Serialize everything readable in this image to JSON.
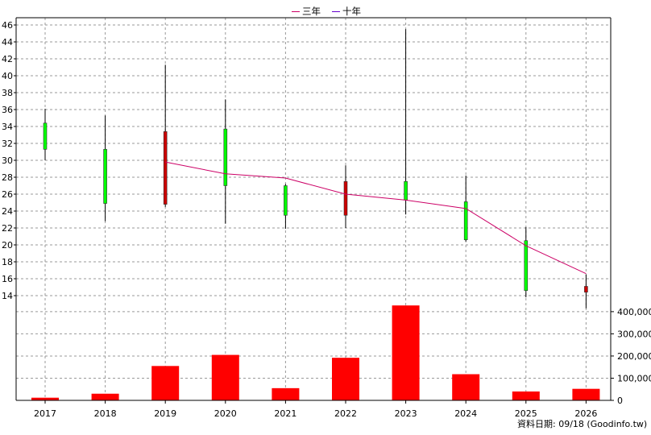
{
  "legend": [
    {
      "label": "三年",
      "color": "#cc0066"
    },
    {
      "label": "十年",
      "color": "#6600cc"
    }
  ],
  "source_text": "資料日期: 09/18 (Goodinfo.tw)",
  "colors": {
    "up": "#00ff00",
    "down": "#cc0000",
    "volume": "#ff0000",
    "ma3": "#cc0066",
    "grid": "#999999",
    "wick": "#000000"
  },
  "chart_data": [
    {
      "type": "candlestick",
      "categories": [
        "2017",
        "2018",
        "2019",
        "2020",
        "2021",
        "2022",
        "2023",
        "2024",
        "2025",
        "2026"
      ],
      "ohlc": [
        {
          "open": 31.3,
          "high": 36.1,
          "low": 30.0,
          "close": 34.4
        },
        {
          "open": 24.9,
          "high": 35.3,
          "low": 22.8,
          "close": 31.3
        },
        {
          "open": 33.4,
          "high": 41.3,
          "low": 24.5,
          "close": 24.8
        },
        {
          "open": 27.0,
          "high": 37.2,
          "low": 22.5,
          "close": 33.7
        },
        {
          "open": 23.5,
          "high": 27.2,
          "low": 21.9,
          "close": 27.0
        },
        {
          "open": 27.5,
          "high": 29.4,
          "low": 22.0,
          "close": 23.5
        },
        {
          "open": 25.3,
          "high": 45.5,
          "low": 23.6,
          "close": 27.5
        },
        {
          "open": 20.6,
          "high": 28.2,
          "low": 20.4,
          "close": 25.1
        },
        {
          "open": 14.6,
          "high": 22.1,
          "low": 13.8,
          "close": 20.5
        },
        {
          "open": 15.1,
          "high": 16.5,
          "low": 12.5,
          "close": 14.4
        }
      ],
      "series": [
        {
          "name": "三年",
          "values": [
            null,
            null,
            29.8,
            28.4,
            27.9,
            26.0,
            25.3,
            24.3,
            19.9,
            16.6
          ]
        },
        {
          "name": "十年",
          "values": [
            null,
            null,
            null,
            null,
            null,
            null,
            null,
            null,
            null,
            null
          ]
        }
      ],
      "y_ticks": [
        14,
        16,
        18,
        20,
        22,
        24,
        26,
        28,
        30,
        32,
        34,
        36,
        38,
        40,
        42,
        44,
        46
      ],
      "ylim": [
        12,
        46.5
      ],
      "grid": true,
      "legend_position": "top-center"
    },
    {
      "type": "bar",
      "categories": [
        "2017",
        "2018",
        "2019",
        "2020",
        "2021",
        "2022",
        "2023",
        "2024",
        "2025",
        "2026"
      ],
      "values": [
        12000,
        30000,
        155000,
        205000,
        55000,
        192000,
        428000,
        118000,
        40000,
        52000
      ],
      "y_ticks": [
        "0",
        "100,000",
        "200,000",
        "300,000",
        "400,000"
      ],
      "ylim": [
        0,
        425000
      ],
      "grid": true
    }
  ]
}
